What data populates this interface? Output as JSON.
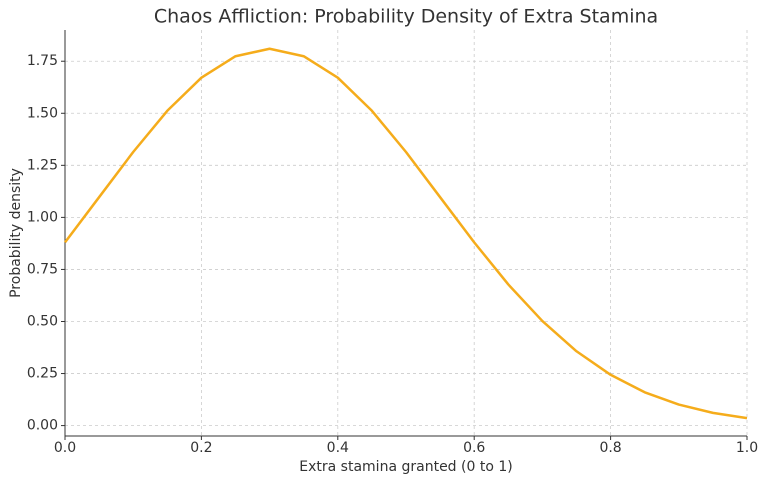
{
  "chart_data": {
    "type": "line",
    "title": "Chaos Affliction: Probability Density of Extra Stamina",
    "x_label": "Extra stamina granted (0 to 1)",
    "y_label": "Probability density",
    "x": [
      0,
      0.05,
      0.1,
      0.15,
      0.2,
      0.25,
      0.3,
      0.35,
      0.4,
      0.45,
      0.5,
      0.55,
      0.6,
      0.65,
      0.7,
      0.75,
      0.8,
      0.85,
      0.9,
      0.95,
      1.0
    ],
    "values": [
      0.88,
      1.097,
      1.314,
      1.512,
      1.671,
      1.774,
      1.81,
      1.774,
      1.671,
      1.512,
      1.314,
      1.097,
      0.88,
      0.678,
      0.502,
      0.357,
      0.244,
      0.16,
      0.101,
      0.061,
      0.036
    ],
    "color": "#f5ac1b",
    "xlim": [
      0,
      1
    ],
    "ylim": [
      -0.05,
      1.9
    ],
    "xticks": [
      {
        "value": 0,
        "label": "0.0"
      },
      0.2,
      0.4,
      0.6,
      0.8,
      {
        "value": 1,
        "label": "1.0"
      }
    ],
    "yticks": [
      {
        "value": 0,
        "label": "0.00"
      },
      0.25,
      {
        "value": 0.5,
        "label": "0.50"
      },
      0.75,
      {
        "value": 1,
        "label": "1.00"
      },
      1.25,
      {
        "value": 1.5,
        "label": "1.50"
      },
      1.75
    ],
    "grid": true
  }
}
